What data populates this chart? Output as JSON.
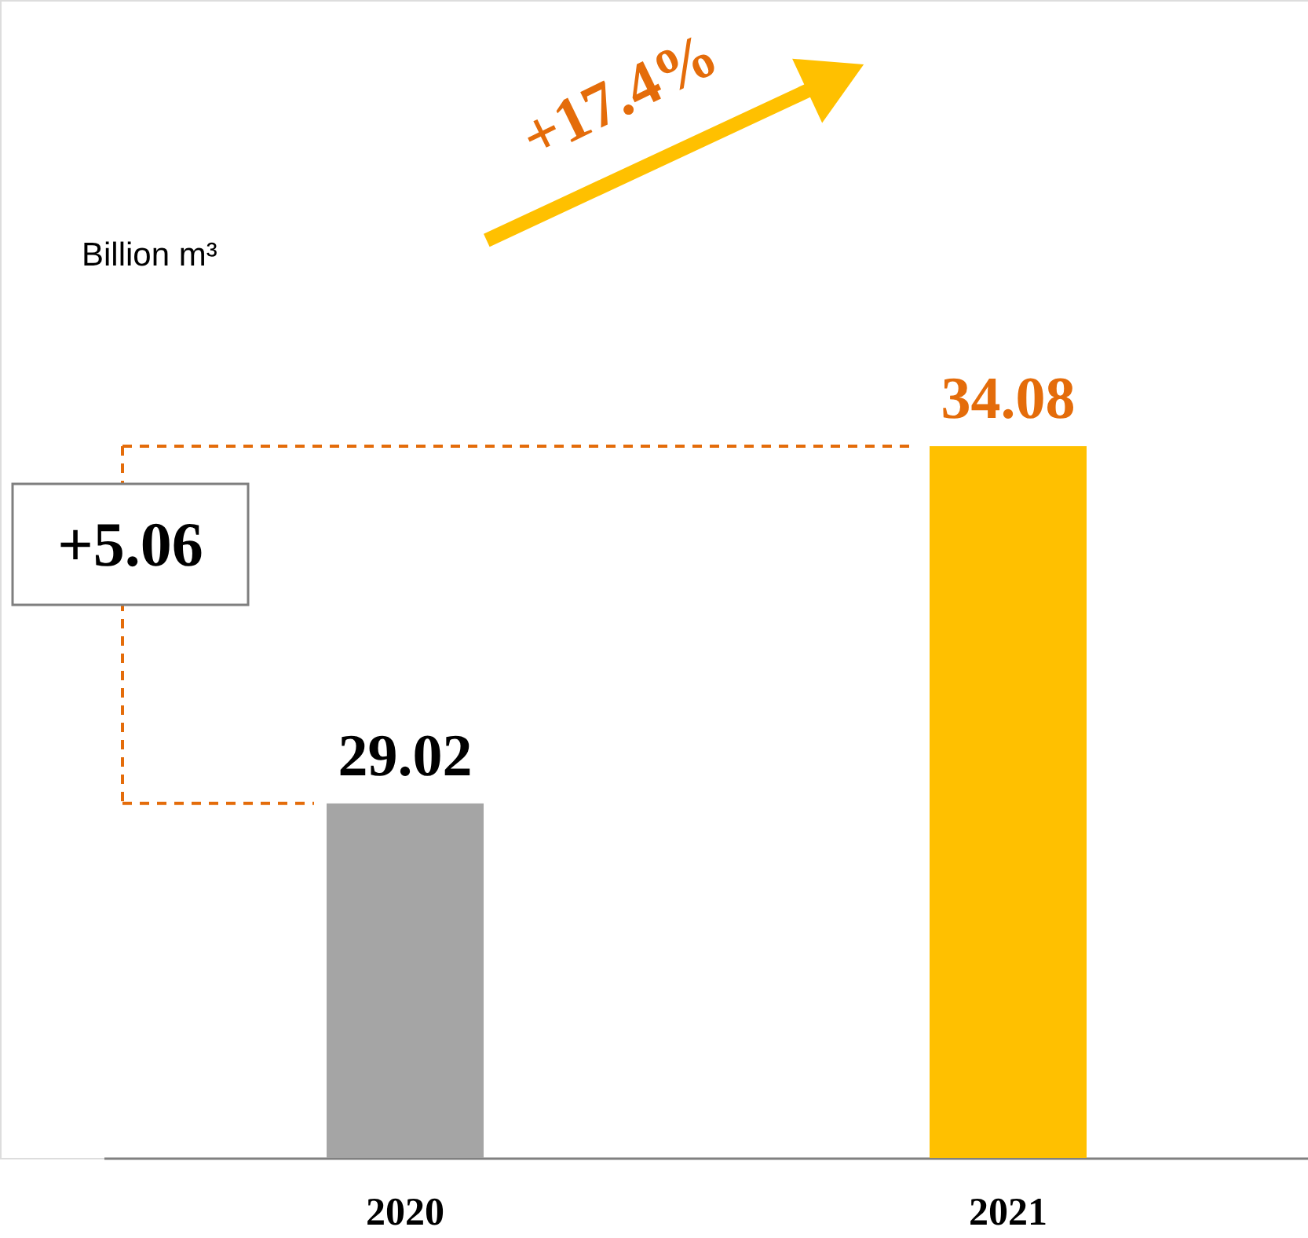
{
  "chart_data": {
    "type": "bar",
    "ylabel": "Billion m³",
    "categories": [
      "2020",
      "2021"
    ],
    "values": [
      29.02,
      34.08
    ],
    "colors": [
      "#a5a5a5",
      "#ffc000"
    ],
    "ylim": [
      24,
      40.4
    ],
    "data_labels": true,
    "ref_lines": [
      {
        "axis": "y",
        "value": 34.08,
        "color": "#e46c0a",
        "line_style": "dashed"
      },
      {
        "axis": "y",
        "value": 29.02,
        "color": "#e46c0a",
        "line_style": "dashed"
      }
    ],
    "annotations": [
      "+17.4%",
      "+5.06"
    ],
    "grid": false
  }
}
